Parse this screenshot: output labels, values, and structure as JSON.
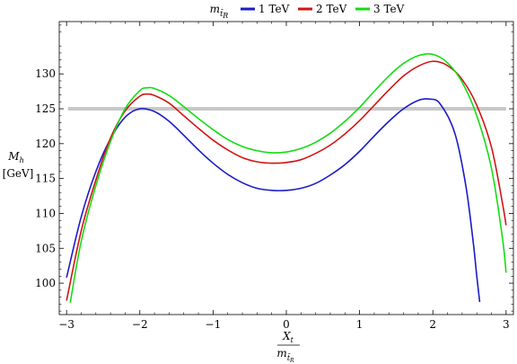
{
  "chart_data": {
    "type": "line",
    "legend": {
      "title_main": "m",
      "title_sub": "t̃",
      "title_subsub": "R",
      "placement": "top-center"
    },
    "xlabel": {
      "numerator": "X",
      "numerator_sub": "t",
      "denominator": "m",
      "denominator_sub": "t̃",
      "denominator_subsub": "R"
    },
    "ylabel": {
      "symbol": "M",
      "symbol_sub": "h",
      "unit": "[GeV]"
    },
    "xlim": [
      -3.1,
      3.1
    ],
    "ylim": [
      95.5,
      137.5
    ],
    "xticks": [
      -3,
      -2,
      -1,
      0,
      1,
      2,
      3
    ],
    "xtick_labels": [
      "−3",
      "−2",
      "−1",
      "0",
      "1",
      "2",
      "3"
    ],
    "yticks": [
      100,
      105,
      110,
      115,
      120,
      125,
      130
    ],
    "ytick_labels": [
      "100",
      "105",
      "110",
      "115",
      "120",
      "125",
      "130"
    ],
    "grid": false,
    "reference_line": {
      "y": 125,
      "color": "#c8c8c8"
    },
    "series": [
      {
        "name": "1 TeV",
        "color": "#1a1ac8",
        "points": [
          [
            -3.0,
            100.8
          ],
          [
            -2.8,
            109.5
          ],
          [
            -2.6,
            116.0
          ],
          [
            -2.4,
            120.7
          ],
          [
            -2.2,
            123.8
          ],
          [
            -2.0,
            125.0
          ],
          [
            -1.8,
            124.6
          ],
          [
            -1.6,
            123.2
          ],
          [
            -1.4,
            121.2
          ],
          [
            -1.2,
            119.1
          ],
          [
            -1.0,
            117.2
          ],
          [
            -0.8,
            115.6
          ],
          [
            -0.6,
            114.4
          ],
          [
            -0.4,
            113.6
          ],
          [
            -0.2,
            113.3
          ],
          [
            0.0,
            113.3
          ],
          [
            0.2,
            113.6
          ],
          [
            0.4,
            114.3
          ],
          [
            0.6,
            115.5
          ],
          [
            0.8,
            117.0
          ],
          [
            1.0,
            118.9
          ],
          [
            1.2,
            121.1
          ],
          [
            1.4,
            123.2
          ],
          [
            1.6,
            125.0
          ],
          [
            1.8,
            126.2
          ],
          [
            1.95,
            126.4
          ],
          [
            2.1,
            125.7
          ],
          [
            2.3,
            121.5
          ],
          [
            2.45,
            114.0
          ],
          [
            2.55,
            106.0
          ],
          [
            2.6,
            101.0
          ],
          [
            2.64,
            97.3
          ]
        ]
      },
      {
        "name": "2 TeV",
        "color": "#d21414",
        "points": [
          [
            -3.0,
            97.5
          ],
          [
            -2.8,
            107.5
          ],
          [
            -2.6,
            114.8
          ],
          [
            -2.4,
            120.8
          ],
          [
            -2.2,
            124.7
          ],
          [
            -2.0,
            126.8
          ],
          [
            -1.9,
            127.1
          ],
          [
            -1.8,
            126.9
          ],
          [
            -1.6,
            125.8
          ],
          [
            -1.4,
            124.0
          ],
          [
            -1.2,
            122.2
          ],
          [
            -1.0,
            120.5
          ],
          [
            -0.8,
            119.1
          ],
          [
            -0.6,
            118.0
          ],
          [
            -0.4,
            117.4
          ],
          [
            -0.2,
            117.2
          ],
          [
            0.0,
            117.3
          ],
          [
            0.2,
            117.7
          ],
          [
            0.4,
            118.6
          ],
          [
            0.6,
            119.8
          ],
          [
            0.8,
            121.4
          ],
          [
            1.0,
            123.3
          ],
          [
            1.2,
            125.5
          ],
          [
            1.4,
            127.7
          ],
          [
            1.6,
            129.7
          ],
          [
            1.8,
            131.1
          ],
          [
            2.0,
            131.8
          ],
          [
            2.2,
            131.2
          ],
          [
            2.4,
            129.2
          ],
          [
            2.6,
            125.5
          ],
          [
            2.8,
            119.5
          ],
          [
            2.95,
            111.5
          ],
          [
            3.0,
            108.3
          ]
        ]
      },
      {
        "name": "3 TeV",
        "color": "#14dc14",
        "points": [
          [
            -2.95,
            97.2
          ],
          [
            -2.8,
            106.0
          ],
          [
            -2.6,
            114.0
          ],
          [
            -2.4,
            120.3
          ],
          [
            -2.2,
            125.0
          ],
          [
            -2.0,
            127.6
          ],
          [
            -1.9,
            128.0
          ],
          [
            -1.8,
            127.9
          ],
          [
            -1.6,
            126.9
          ],
          [
            -1.4,
            125.3
          ],
          [
            -1.2,
            123.6
          ],
          [
            -1.0,
            122.0
          ],
          [
            -0.8,
            120.6
          ],
          [
            -0.6,
            119.6
          ],
          [
            -0.4,
            119.0
          ],
          [
            -0.2,
            118.7
          ],
          [
            0.0,
            118.8
          ],
          [
            0.2,
            119.3
          ],
          [
            0.4,
            120.2
          ],
          [
            0.6,
            121.5
          ],
          [
            0.8,
            123.2
          ],
          [
            1.0,
            125.2
          ],
          [
            1.2,
            127.5
          ],
          [
            1.4,
            129.7
          ],
          [
            1.6,
            131.5
          ],
          [
            1.8,
            132.6
          ],
          [
            2.0,
            132.8
          ],
          [
            2.2,
            131.6
          ],
          [
            2.4,
            128.8
          ],
          [
            2.6,
            124.0
          ],
          [
            2.8,
            116.5
          ],
          [
            2.95,
            106.5
          ],
          [
            3.0,
            101.5
          ]
        ]
      }
    ]
  }
}
